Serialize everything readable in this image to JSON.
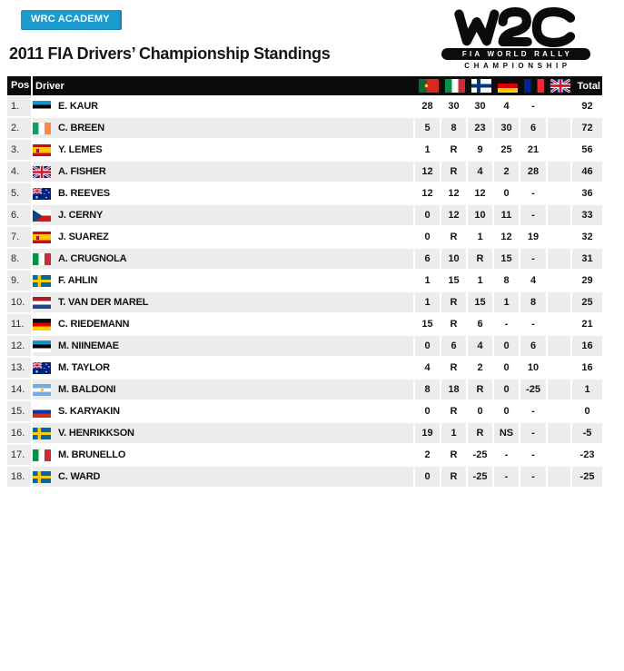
{
  "badge": {
    "label": "WRC ACADEMY"
  },
  "logo": {
    "word": "WRC",
    "line1": "FIA WORLD RALLY",
    "line2": "CHAMPIONSHIP"
  },
  "page_title": "2011 FIA Drivers’ Championship Standings",
  "colors": {
    "badge_blue": "#1b9ace",
    "header_black": "#0b0b0b",
    "row_gray": "#ececec",
    "text_dark": "#15151c"
  },
  "table": {
    "headers": {
      "pos": "Pos",
      "driver": "Driver",
      "total": "Total"
    },
    "rounds": [
      {
        "name": "portugal",
        "flag": "pt"
      },
      {
        "name": "italy",
        "flag": "it"
      },
      {
        "name": "finland",
        "flag": "fi"
      },
      {
        "name": "germany",
        "flag": "de"
      },
      {
        "name": "france",
        "flag": "fr"
      },
      {
        "name": "great-britain",
        "flag": "gb"
      }
    ],
    "rows": [
      {
        "pos": "1.",
        "country": "estonia",
        "flag": "ee",
        "driver": "E. KAUR",
        "scores": [
          "28",
          "30",
          "30",
          "4",
          "-",
          ""
        ],
        "total": "92"
      },
      {
        "pos": "2.",
        "country": "ireland",
        "flag": "ie",
        "driver": "C. BREEN",
        "scores": [
          "5",
          "8",
          "23",
          "30",
          "6",
          ""
        ],
        "total": "72"
      },
      {
        "pos": "3.",
        "country": "spain",
        "flag": "es",
        "driver": "Y. LEMES",
        "scores": [
          "1",
          "R",
          "9",
          "25",
          "21",
          ""
        ],
        "total": "56"
      },
      {
        "pos": "4.",
        "country": "great-britain",
        "flag": "gb",
        "driver": "A. FISHER",
        "scores": [
          "12",
          "R",
          "4",
          "2",
          "28",
          ""
        ],
        "total": "46"
      },
      {
        "pos": "5.",
        "country": "australia",
        "flag": "au",
        "driver": "B. REEVES",
        "scores": [
          "12",
          "12",
          "12",
          "0",
          "-",
          ""
        ],
        "total": "36"
      },
      {
        "pos": "6.",
        "country": "czech-republic",
        "flag": "cz",
        "driver": "J. CERNY",
        "scores": [
          "0",
          "12",
          "10",
          "11",
          "-",
          ""
        ],
        "total": "33"
      },
      {
        "pos": "7.",
        "country": "spain",
        "flag": "es",
        "driver": "J. SUAREZ",
        "scores": [
          "0",
          "R",
          "1",
          "12",
          "19",
          ""
        ],
        "total": "32"
      },
      {
        "pos": "8.",
        "country": "italy",
        "flag": "it",
        "driver": "A. CRUGNOLA",
        "scores": [
          "6",
          "10",
          "R",
          "15",
          "-",
          ""
        ],
        "total": "31"
      },
      {
        "pos": "9.",
        "country": "sweden",
        "flag": "se",
        "driver": "F. AHLIN",
        "scores": [
          "1",
          "15",
          "1",
          "8",
          "4",
          ""
        ],
        "total": "29"
      },
      {
        "pos": "10.",
        "country": "netherlands",
        "flag": "nl",
        "driver": "T. VAN DER MAREL",
        "scores": [
          "1",
          "R",
          "15",
          "1",
          "8",
          ""
        ],
        "total": "25"
      },
      {
        "pos": "11.",
        "country": "germany",
        "flag": "de",
        "driver": "C. RIEDEMANN",
        "scores": [
          "15",
          "R",
          "6",
          "-",
          "-",
          ""
        ],
        "total": "21"
      },
      {
        "pos": "12.",
        "country": "estonia",
        "flag": "ee",
        "driver": "M. NIINEMAE",
        "scores": [
          "0",
          "6",
          "4",
          "0",
          "6",
          ""
        ],
        "total": "16"
      },
      {
        "pos": "13.",
        "country": "australia",
        "flag": "au",
        "driver": "M. TAYLOR",
        "scores": [
          "4",
          "R",
          "2",
          "0",
          "10",
          ""
        ],
        "total": "16"
      },
      {
        "pos": "14.",
        "country": "argentina",
        "flag": "ar",
        "driver": "M. BALDONI",
        "scores": [
          "8",
          "18",
          "R",
          "0",
          "-25",
          ""
        ],
        "total": "1"
      },
      {
        "pos": "15.",
        "country": "russia",
        "flag": "ru",
        "driver": "S. KARYAKIN",
        "scores": [
          "0",
          "R",
          "0",
          "0",
          "-",
          ""
        ],
        "total": "0"
      },
      {
        "pos": "16.",
        "country": "sweden",
        "flag": "se",
        "driver": "V. HENRIKKSON",
        "scores": [
          "19",
          "1",
          "R",
          "NS",
          "-",
          ""
        ],
        "total": "-5"
      },
      {
        "pos": "17.",
        "country": "italy",
        "flag": "it",
        "driver": "M. BRUNELLO",
        "scores": [
          "2",
          "R",
          "-25",
          "-",
          "-",
          ""
        ],
        "total": "-23"
      },
      {
        "pos": "18.",
        "country": "sweden",
        "flag": "se",
        "driver": "C. WARD",
        "scores": [
          "0",
          "R",
          "-25",
          "-",
          "-",
          ""
        ],
        "total": "-25"
      }
    ]
  }
}
